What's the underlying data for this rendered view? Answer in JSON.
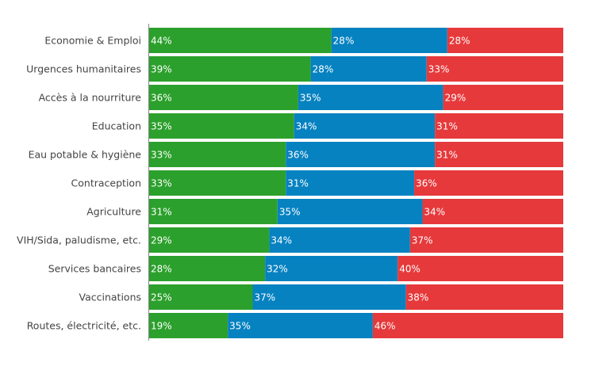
{
  "chart_data": {
    "type": "bar",
    "orientation": "horizontal",
    "stacked": true,
    "xlim": [
      0,
      100
    ],
    "grid": false,
    "categories": [
      "Economie & Emploi",
      "Urgences humanitaires",
      "Accès à la nourriture",
      "Education",
      "Eau potable & hygiène",
      "Contraception",
      "Agriculture",
      "VIH/Sida, paludisme, etc.",
      "Services bancaires",
      "Vaccinations",
      "Routes, électricité, etc."
    ],
    "series": [
      {
        "color": "#2ca02c",
        "values": [
          44,
          39,
          36,
          35,
          33,
          33,
          31,
          29,
          28,
          25,
          19
        ]
      },
      {
        "color": "#0682c1",
        "values": [
          28,
          28,
          35,
          34,
          36,
          31,
          35,
          34,
          32,
          37,
          35
        ]
      },
      {
        "color": "#e6393b",
        "values": [
          28,
          33,
          29,
          31,
          31,
          36,
          34,
          37,
          40,
          38,
          46
        ]
      }
    ],
    "value_suffix": "%"
  }
}
